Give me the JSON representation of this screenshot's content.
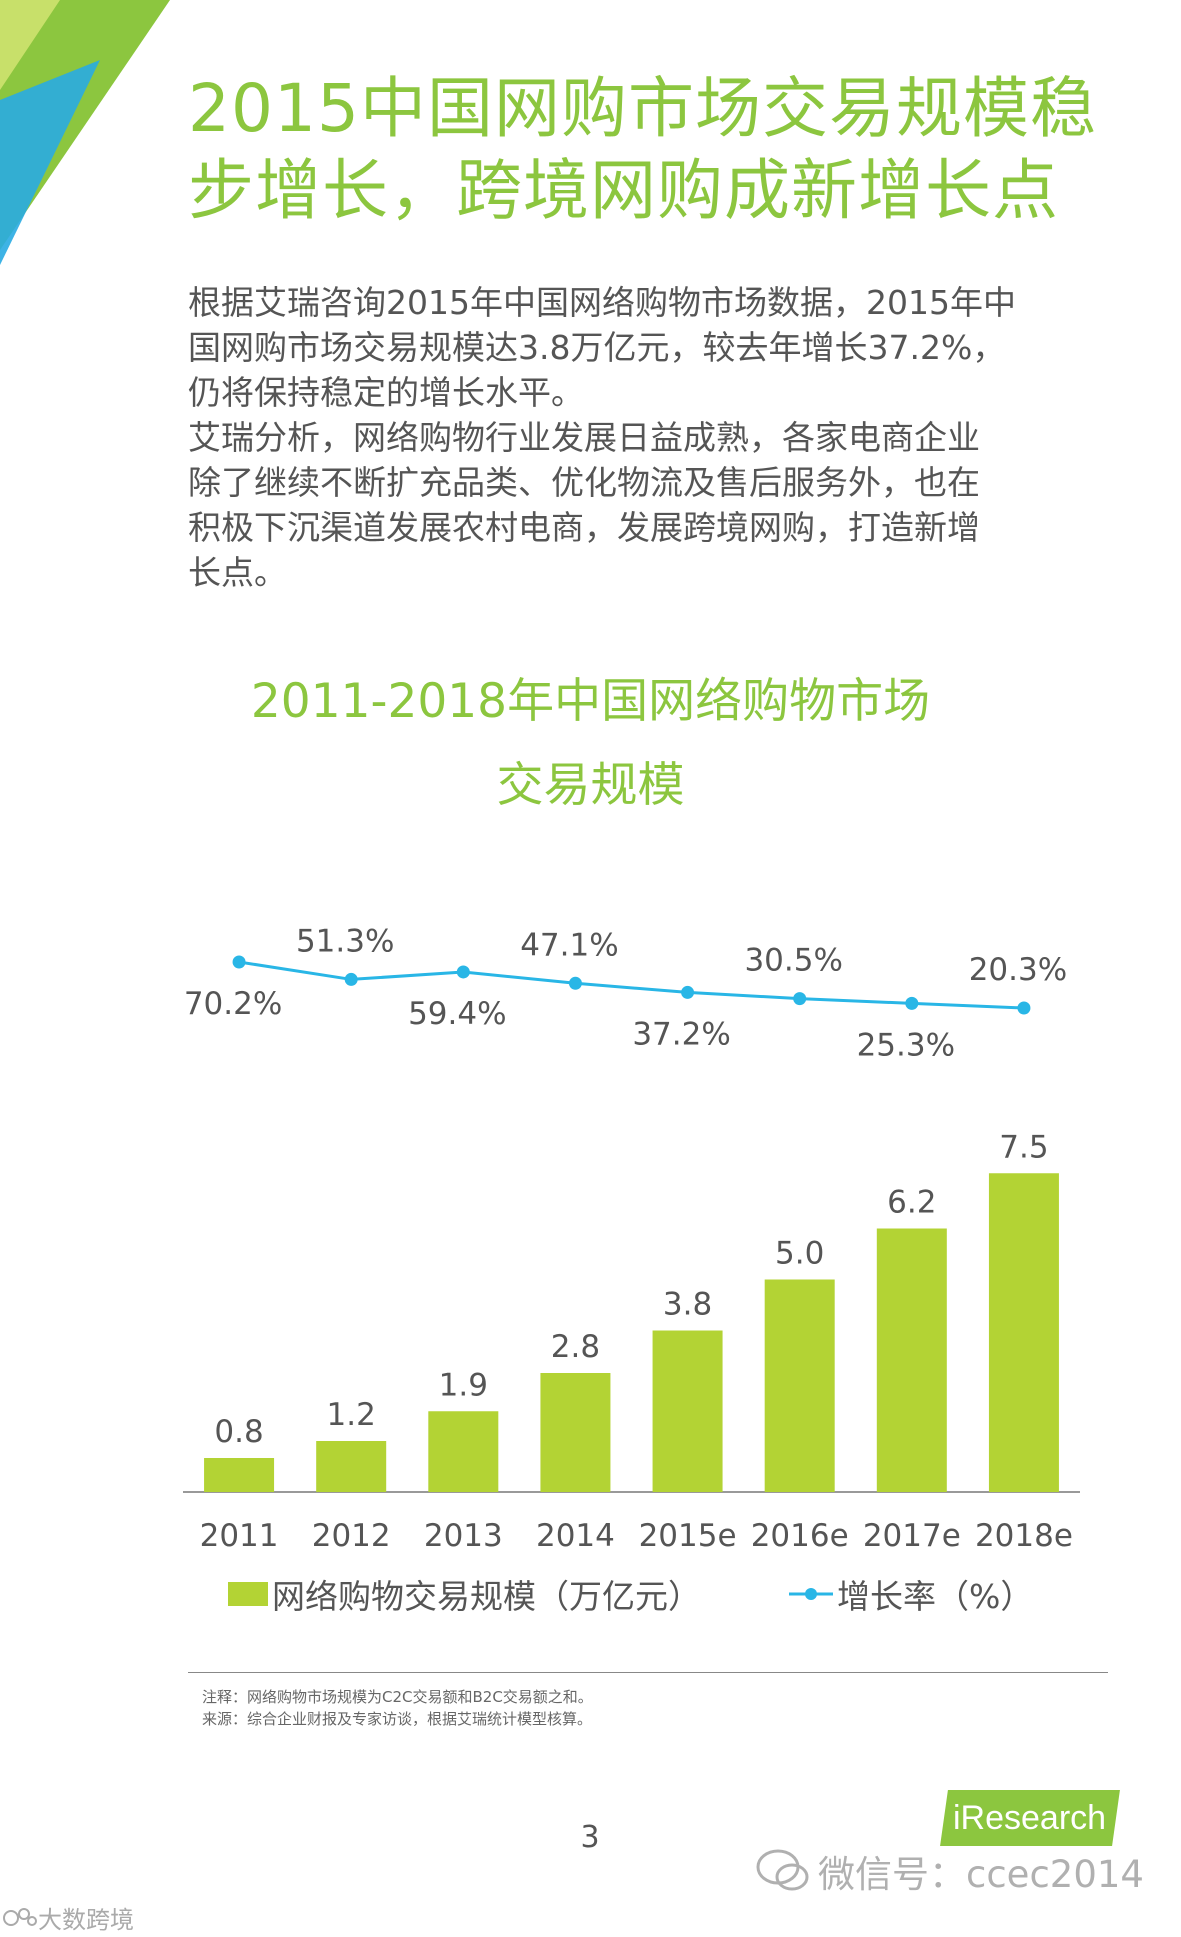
{
  "header": {
    "title_line1": "2015中国网购市场交易规模稳",
    "title_line2": "步增长，跨境网购成新增长点"
  },
  "intro": {
    "para1_line1": "根据艾瑞咨询2015年中国网络购物市场数据，2015年中",
    "para1_line2": "国网购市场交易规模达3.8万亿元，较去年增长37.2%，",
    "para1_line3": "仍将保持稳定的增长水平。",
    "para2_line1": "艾瑞分析，网络购物行业发展日益成熟，各家电商企业",
    "para2_line2": "除了继续不断扩充品类、优化物流及售后服务外，也在",
    "para2_line3": "积极下沉渠道发展农村电商，发展跨境网购，打造新增",
    "para2_line4": "长点。"
  },
  "chart_data": {
    "type": "bar",
    "title_line1": "2011-2018年中国网络购物市场",
    "title_line2": "交易规模",
    "categories": [
      "2011",
      "2012",
      "2013",
      "2014",
      "2015e",
      "2016e",
      "2017e",
      "2018e"
    ],
    "series": [
      {
        "name": "网络购物交易规模（万亿元）",
        "type": "bar",
        "values": [
          0.8,
          1.2,
          1.9,
          2.8,
          3.8,
          5.0,
          6.2,
          7.5
        ],
        "labels": [
          "0.8",
          "1.2",
          "1.9",
          "2.8",
          "3.8",
          "5.0",
          "6.2",
          "7.5"
        ]
      },
      {
        "name": "增长率（%）",
        "type": "line",
        "values": [
          70.2,
          51.3,
          59.4,
          47.1,
          37.2,
          30.5,
          25.3,
          20.3
        ],
        "labels": [
          "70.2%",
          "51.3%",
          "59.4%",
          "47.1%",
          "37.2%",
          "30.5%",
          "25.3%",
          "20.3%"
        ]
      }
    ],
    "legend": {
      "bar_label": "网络购物交易规模（万亿元）",
      "line_label": "增长率（%）"
    },
    "colors": {
      "bar": "#b3d334",
      "line": "#29b6e6",
      "title": "#8cc63f"
    },
    "ylim_bar": [
      0,
      8.8
    ],
    "ylim_line": [
      0,
      75
    ]
  },
  "footnotes": {
    "note": "注释：网络购物市场规模为C2C交易额和B2C交易额之和。",
    "source": "来源：综合企业财报及专家访谈，根据艾瑞统计模型核算。"
  },
  "footer": {
    "page_number": "3",
    "logo_text": "iResearch",
    "wechat_text": "微信号：ccec2014",
    "bottom_mark": "大数跨境"
  }
}
